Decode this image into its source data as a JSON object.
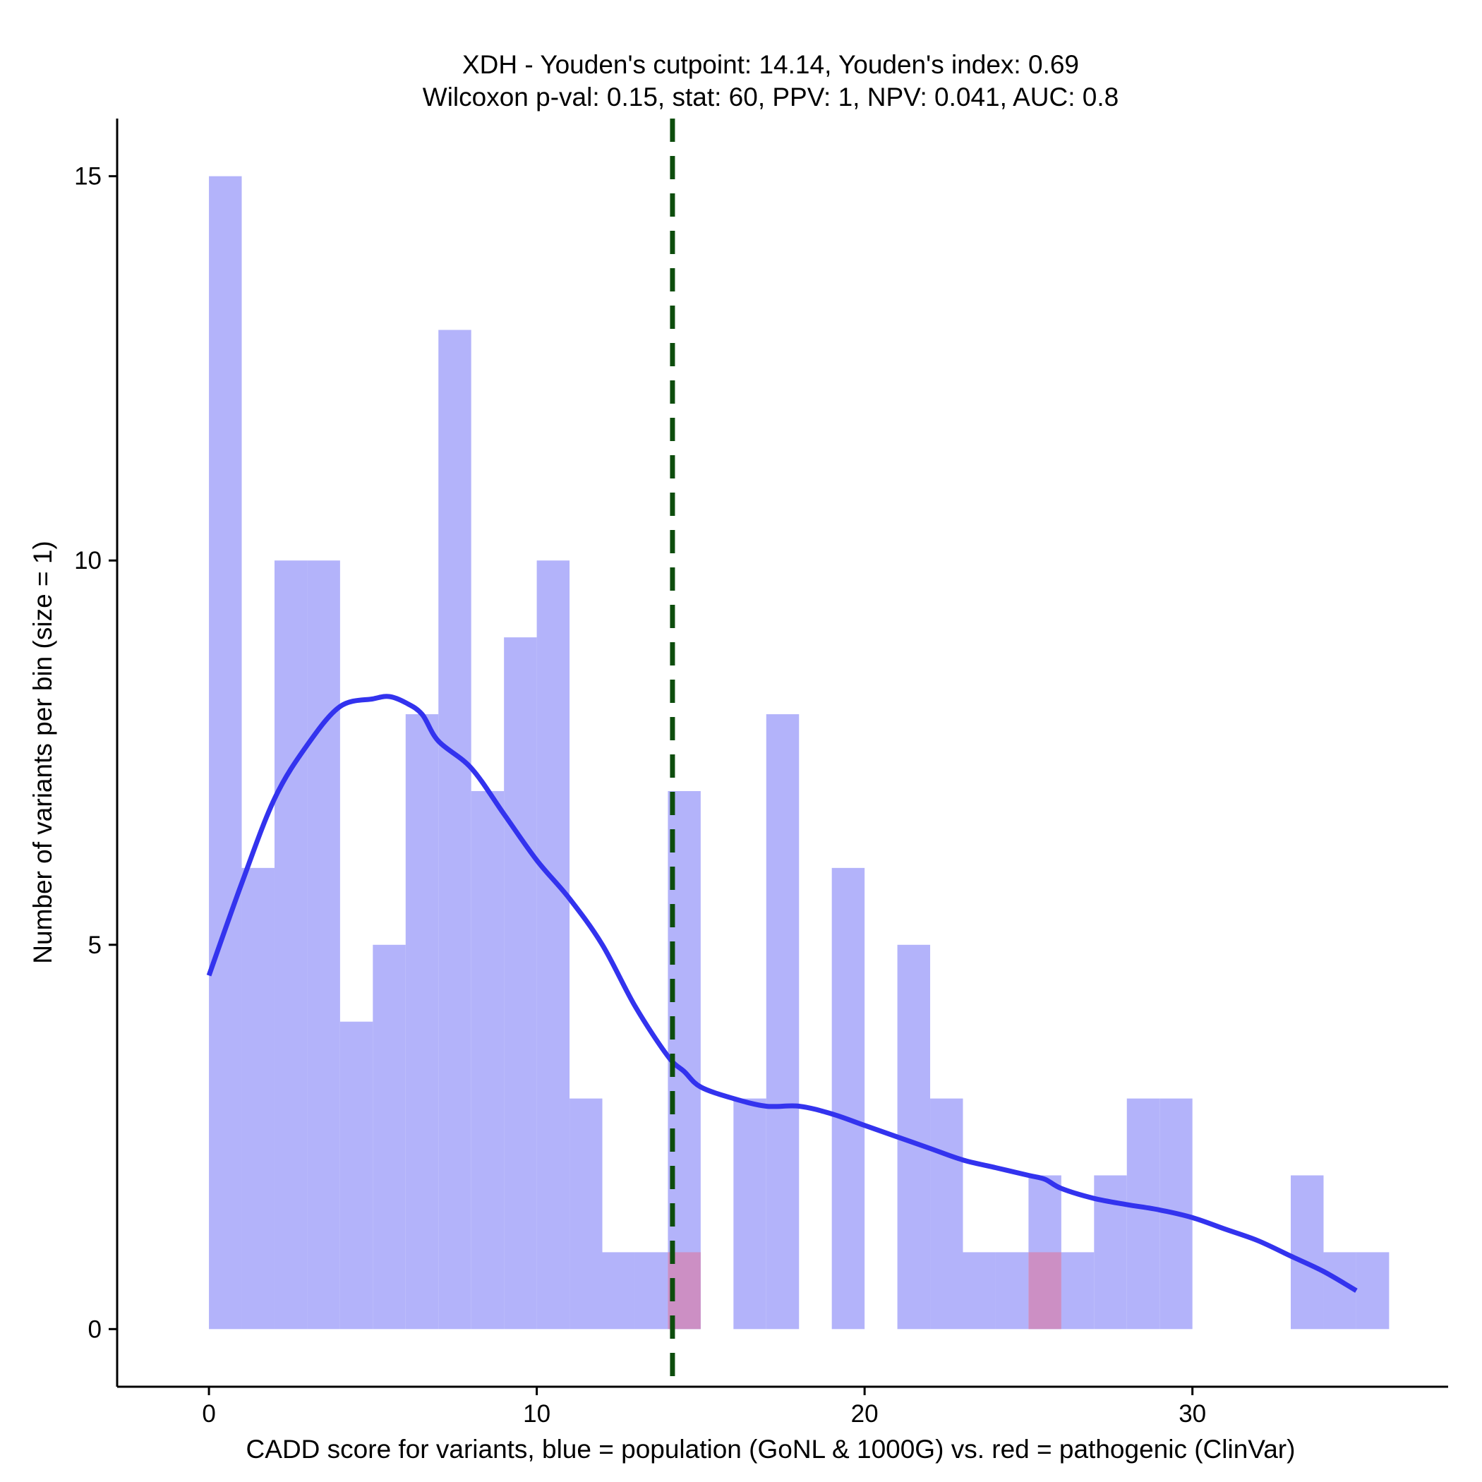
{
  "chart_data": {
    "type": "histogram",
    "title_lines": [
      "XDH - Youden's cutpoint: 14.14, Youden's index: 0.69",
      "Wilcoxon p-val: 0.15, stat: 60, PPV: 1, NPV: 0.041, AUC: 0.8"
    ],
    "xlabel": "CADD score for variants, blue = population (GoNL & 1000G) vs. red = pathogenic (ClinVar)",
    "ylabel": "Number of variants per bin (size = 1)",
    "xlim": [
      -2.8,
      37.8
    ],
    "ylim": [
      -0.75,
      15.75
    ],
    "x_ticks": [
      0,
      10,
      20,
      30
    ],
    "y_ticks": [
      0,
      5,
      10,
      15
    ],
    "bin_size": 1,
    "series": [
      {
        "name": "population (GoNL & 1000G)",
        "color": "#b3b3fa",
        "bins": [
          {
            "start": 0,
            "count": 15
          },
          {
            "start": 1,
            "count": 6
          },
          {
            "start": 2,
            "count": 10
          },
          {
            "start": 3,
            "count": 10
          },
          {
            "start": 4,
            "count": 4
          },
          {
            "start": 5,
            "count": 5
          },
          {
            "start": 6,
            "count": 8
          },
          {
            "start": 7,
            "count": 13
          },
          {
            "start": 8,
            "count": 7
          },
          {
            "start": 9,
            "count": 9
          },
          {
            "start": 10,
            "count": 10
          },
          {
            "start": 11,
            "count": 3
          },
          {
            "start": 12,
            "count": 1
          },
          {
            "start": 13,
            "count": 1
          },
          {
            "start": 14,
            "count": 7
          },
          {
            "start": 16,
            "count": 3
          },
          {
            "start": 17,
            "count": 8
          },
          {
            "start": 19,
            "count": 6
          },
          {
            "start": 21,
            "count": 5
          },
          {
            "start": 22,
            "count": 3
          },
          {
            "start": 23,
            "count": 1
          },
          {
            "start": 24,
            "count": 1
          },
          {
            "start": 25,
            "count": 2
          },
          {
            "start": 26,
            "count": 1
          },
          {
            "start": 27,
            "count": 2
          },
          {
            "start": 28,
            "count": 3
          },
          {
            "start": 29,
            "count": 3
          },
          {
            "start": 33,
            "count": 2
          },
          {
            "start": 34,
            "count": 1
          },
          {
            "start": 35,
            "count": 1
          }
        ]
      },
      {
        "name": "pathogenic (ClinVar)",
        "color": "#cc8fc4",
        "bins": [
          {
            "start": 14,
            "count": 1
          },
          {
            "start": 25,
            "count": 1
          }
        ]
      }
    ],
    "density_curve": {
      "name": "population density (scaled)",
      "color": "#3333ee",
      "x": [
        0,
        1,
        2,
        3,
        4,
        5,
        5.5,
        6,
        6.5,
        7,
        8,
        9,
        10,
        11,
        12,
        13,
        14,
        14.5,
        15,
        16,
        17,
        18,
        19,
        20,
        21,
        22,
        23,
        24,
        25,
        25.5,
        26,
        27,
        28,
        29,
        30,
        31,
        32,
        33,
        34,
        35
      ],
      "y": [
        4.6,
        5.8,
        6.9,
        7.6,
        8.1,
        8.2,
        8.23,
        8.15,
        8.0,
        7.65,
        7.3,
        6.7,
        6.1,
        5.6,
        5.0,
        4.2,
        3.55,
        3.35,
        3.15,
        3.0,
        2.9,
        2.9,
        2.8,
        2.65,
        2.5,
        2.35,
        2.2,
        2.1,
        2.0,
        1.95,
        1.83,
        1.7,
        1.62,
        1.55,
        1.45,
        1.3,
        1.15,
        0.95,
        0.75,
        0.5
      ]
    },
    "cutpoint": {
      "label": "Youden's cutpoint",
      "value": 14.14,
      "color": "#0d4d0d",
      "style": "dashed"
    }
  }
}
